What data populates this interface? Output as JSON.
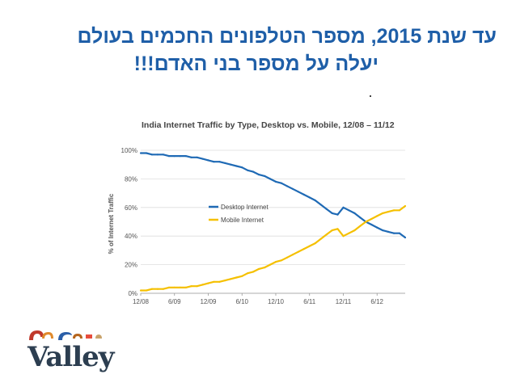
{
  "slide": {
    "title_line1": "עד שנת 2015, מספר הטלפונים החכמים בעולם",
    "title_line2": "יעלה על מספר בני האדם!!!"
  },
  "logo": {
    "text": "Valley",
    "colors": [
      "#c0392b",
      "#e08a2c",
      "#2b5fa8",
      "#b5651d",
      "#e74c3c"
    ]
  },
  "chart_data": {
    "type": "line",
    "title": "India Internet Traffic by Type, Desktop vs. Mobile, 12/08 – 11/12",
    "xlabel": "",
    "ylabel": "% of Internet Traffic",
    "x_ticks": [
      "12/08",
      "6/09",
      "12/09",
      "6/10",
      "12/10",
      "6/11",
      "12/11",
      "6/12"
    ],
    "y_ticks": [
      "0%",
      "20%",
      "40%",
      "60%",
      "80%",
      "100%"
    ],
    "ylim": [
      0,
      100
    ],
    "x_unit": "month",
    "x": [
      "12/08",
      "1/09",
      "2/09",
      "3/09",
      "4/09",
      "5/09",
      "6/09",
      "7/09",
      "8/09",
      "9/09",
      "10/09",
      "11/09",
      "12/09",
      "1/10",
      "2/10",
      "3/10",
      "4/10",
      "5/10",
      "6/10",
      "7/10",
      "8/10",
      "9/10",
      "10/10",
      "11/10",
      "12/10",
      "1/11",
      "2/11",
      "3/11",
      "4/11",
      "5/11",
      "6/11",
      "7/11",
      "8/11",
      "9/11",
      "10/11",
      "11/11",
      "12/11",
      "1/12",
      "2/12",
      "3/12",
      "4/12",
      "5/12",
      "6/12",
      "7/12",
      "8/12",
      "9/12",
      "10/12",
      "11/12"
    ],
    "series": [
      {
        "name": "Desktop Internet",
        "color": "#1f6ab5",
        "values": [
          98,
          98,
          97,
          97,
          97,
          96,
          96,
          96,
          96,
          95,
          95,
          94,
          93,
          92,
          92,
          91,
          90,
          89,
          88,
          86,
          85,
          83,
          82,
          80,
          78,
          77,
          75,
          73,
          71,
          69,
          67,
          65,
          62,
          59,
          56,
          55,
          60,
          58,
          56,
          53,
          50,
          48,
          46,
          44,
          43,
          42,
          42,
          39
        ]
      },
      {
        "name": "Mobile Internet",
        "color": "#f5c000",
        "values": [
          2,
          2,
          3,
          3,
          3,
          4,
          4,
          4,
          4,
          5,
          5,
          6,
          7,
          8,
          8,
          9,
          10,
          11,
          12,
          14,
          15,
          17,
          18,
          20,
          22,
          23,
          25,
          27,
          29,
          31,
          33,
          35,
          38,
          41,
          44,
          45,
          40,
          42,
          44,
          47,
          50,
          52,
          54,
          56,
          57,
          58,
          58,
          61
        ]
      }
    ],
    "legend_position": "center-left",
    "grid": true
  }
}
